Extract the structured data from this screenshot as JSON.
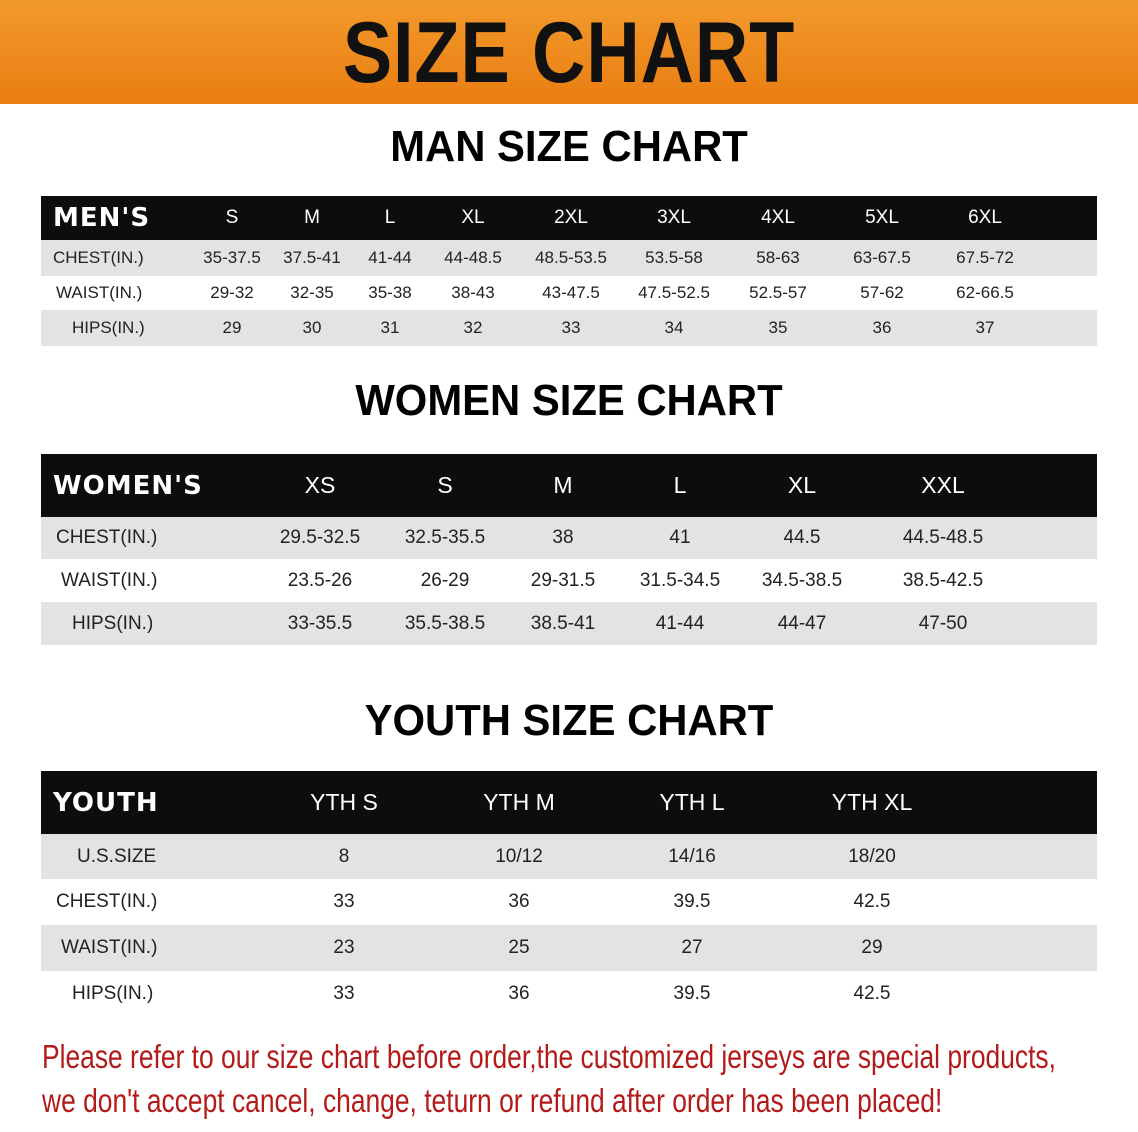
{
  "banner": {
    "title": "SIZE CHART"
  },
  "men": {
    "title": "MAN SIZE CHART",
    "header": "MEN'S",
    "sizes": [
      "S",
      "M",
      "L",
      "XL",
      "2XL",
      "3XL",
      "4XL",
      "5XL",
      "6XL"
    ],
    "rows": [
      {
        "label": "CHEST(IN.)",
        "values": [
          "35-37.5",
          "37.5-41",
          "41-44",
          "44-48.5",
          "48.5-53.5",
          "53.5-58",
          "58-63",
          "63-67.5",
          "67.5-72"
        ]
      },
      {
        "label": "WAIST(IN.)",
        "values": [
          "29-32",
          "32-35",
          "35-38",
          "38-43",
          "43-47.5",
          "47.5-52.5",
          "52.5-57",
          "57-62",
          "62-66.5"
        ]
      },
      {
        "label": "HIPS(IN.)",
        "values": [
          "29",
          "30",
          "31",
          "32",
          "33",
          "34",
          "35",
          "36",
          "37"
        ]
      }
    ]
  },
  "women": {
    "title": "WOMEN SIZE CHART",
    "header": "WOMEN'S",
    "sizes": [
      "XS",
      "S",
      "M",
      "L",
      "XL",
      "XXL"
    ],
    "rows": [
      {
        "label": "CHEST(IN.)",
        "values": [
          "29.5-32.5",
          "32.5-35.5",
          "38",
          "41",
          "44.5",
          "44.5-48.5"
        ]
      },
      {
        "label": "WAIST(IN.)",
        "values": [
          "23.5-26",
          "26-29",
          "29-31.5",
          "31.5-34.5",
          "34.5-38.5",
          "38.5-42.5"
        ]
      },
      {
        "label": "HIPS(IN.)",
        "values": [
          "33-35.5",
          "35.5-38.5",
          "38.5-41",
          "41-44",
          "44-47",
          "47-50"
        ]
      }
    ]
  },
  "youth": {
    "title": "YOUTH SIZE CHART",
    "header": "YOUTH",
    "sizes": [
      "YTH S",
      "YTH M",
      "YTH L",
      "YTH XL"
    ],
    "rows": [
      {
        "label": "U.S.SIZE",
        "values": [
          "8",
          "10/12",
          "14/16",
          "18/20"
        ]
      },
      {
        "label": "CHEST(IN.)",
        "values": [
          "33",
          "36",
          "39.5",
          "42.5"
        ]
      },
      {
        "label": "WAIST(IN.)",
        "values": [
          "23",
          "25",
          "27",
          "29"
        ]
      },
      {
        "label": "HIPS(IN.)",
        "values": [
          "33",
          "36",
          "39.5",
          "42.5"
        ]
      }
    ]
  },
  "notice": {
    "line1": "Please refer to our size chart before order,the customized jerseys are special products,",
    "line2": "we don't accept cancel, change, teturn or refund after order has been placed!"
  },
  "colors": {
    "banner": "#ee8a1f",
    "header_bg": "#0d0d0d",
    "stripe": "#e3e3e5",
    "notice": "#b31b1b"
  }
}
